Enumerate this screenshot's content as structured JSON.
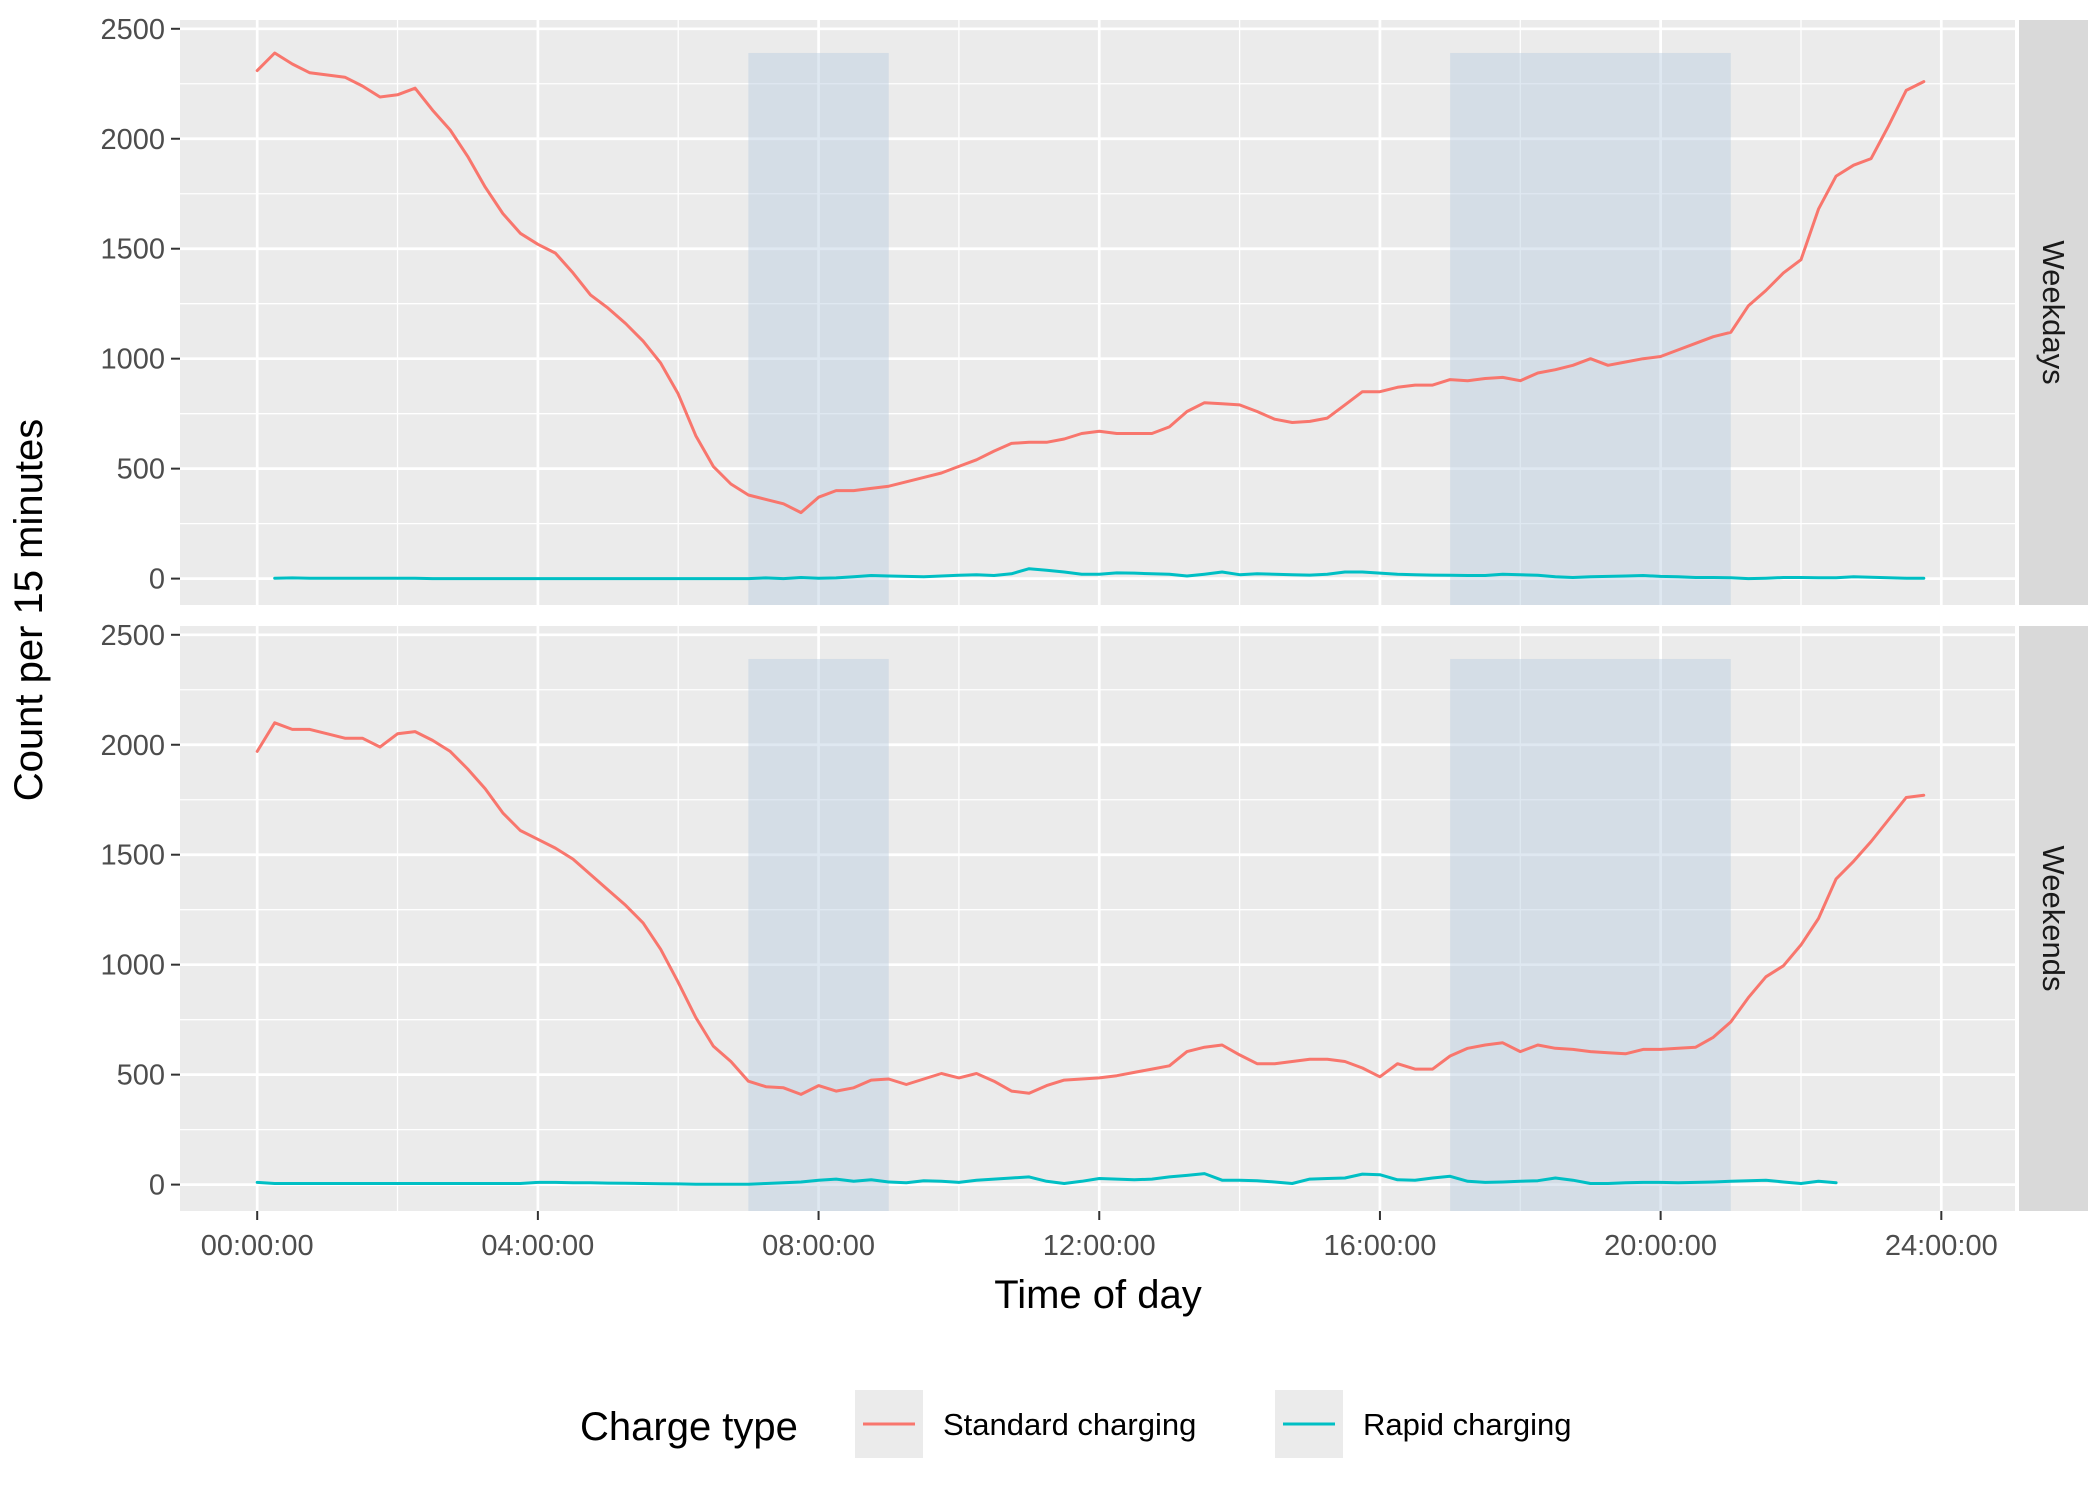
{
  "chart_data": {
    "type": "line",
    "xlabel": "Time of day",
    "ylabel": "Count per 15 minutes",
    "x_unit": "hours",
    "xlim": [
      -1.1,
      25.05
    ],
    "ylim": [
      -120,
      2540
    ],
    "x_ticks": [
      0,
      4,
      8,
      12,
      16,
      20,
      24
    ],
    "x_tick_labels": [
      "00:00:00",
      "04:00:00",
      "08:00:00",
      "12:00:00",
      "16:00:00",
      "20:00:00",
      "24:00:00"
    ],
    "y_ticks": [
      0,
      500,
      1000,
      1500,
      2000,
      2500
    ],
    "y_tick_labels": [
      "0",
      "500",
      "1000",
      "1500",
      "2000",
      "2500"
    ],
    "grid": true,
    "shaded_periods": [
      {
        "from": 7,
        "to": 9,
        "y_to": 2390
      },
      {
        "from": 17,
        "to": 21,
        "y_to": 2390
      }
    ],
    "legend": {
      "title": "Charge type",
      "position": "bottom",
      "entries": [
        {
          "name": "Standard charging",
          "color": "#F8766D"
        },
        {
          "name": "Rapid charging",
          "color": "#00BFC4"
        }
      ]
    },
    "panels": [
      {
        "name": "Weekdays",
        "series": [
          {
            "name": "Standard charging",
            "color": "#F8766D",
            "x": [
              0,
              0.25,
              0.5,
              0.75,
              1,
              1.25,
              1.5,
              1.75,
              2,
              2.25,
              2.5,
              2.75,
              3,
              3.25,
              3.5,
              3.75,
              4,
              4.25,
              4.5,
              4.75,
              5,
              5.25,
              5.5,
              5.75,
              6,
              6.25,
              6.5,
              6.75,
              7,
              7.25,
              7.5,
              7.75,
              8,
              8.25,
              8.5,
              8.75,
              9,
              9.25,
              9.5,
              9.75,
              10,
              10.25,
              10.5,
              10.75,
              11,
              11.25,
              11.5,
              11.75,
              12,
              12.25,
              12.5,
              12.75,
              13,
              13.25,
              13.5,
              13.75,
              14,
              14.25,
              14.5,
              14.75,
              15,
              15.25,
              15.5,
              15.75,
              16,
              16.25,
              16.5,
              16.75,
              17,
              17.25,
              17.5,
              17.75,
              18,
              18.25,
              18.5,
              18.75,
              19,
              19.25,
              19.5,
              19.75,
              20,
              20.25,
              20.5,
              20.75,
              21,
              21.25,
              21.5,
              21.75,
              22,
              22.25,
              22.5,
              22.75,
              23,
              23.25,
              23.5,
              23.75
            ],
            "y": [
              2310,
              2390,
              2340,
              2300,
              2290,
              2280,
              2240,
              2190,
              2200,
              2230,
              2130,
              2040,
              1920,
              1780,
              1660,
              1570,
              1520,
              1480,
              1390,
              1290,
              1230,
              1160,
              1080,
              980,
              840,
              650,
              510,
              430,
              380,
              360,
              340,
              300,
              370,
              400,
              400,
              410,
              420,
              440,
              460,
              480,
              510,
              540,
              580,
              615,
              620,
              620,
              635,
              660,
              670,
              660,
              660,
              660,
              690,
              760,
              800,
              795,
              790,
              760,
              725,
              710,
              715,
              730,
              790,
              850,
              850,
              870,
              880,
              880,
              905,
              900,
              910,
              915,
              900,
              935,
              950,
              970,
              1000,
              970,
              985,
              1000,
              1010,
              1040,
              1070,
              1100,
              1120,
              1240,
              1310,
              1390,
              1450,
              1680,
              1830,
              1880,
              1910,
              2060,
              2220,
              2260
            ]
          },
          {
            "name": "Rapid charging",
            "color": "#00BFC4",
            "x": [
              0.25,
              0.5,
              0.75,
              1,
              1.25,
              1.5,
              1.75,
              2,
              2.25,
              2.5,
              2.75,
              3,
              3.25,
              3.5,
              3.75,
              4,
              4.25,
              4.5,
              4.75,
              5,
              5.25,
              5.5,
              5.75,
              6,
              6.25,
              6.5,
              6.75,
              7,
              7.25,
              7.5,
              7.75,
              8,
              8.25,
              8.5,
              8.75,
              9,
              9.25,
              9.5,
              9.75,
              10,
              10.25,
              10.5,
              10.75,
              11,
              11.25,
              11.5,
              11.75,
              12,
              12.25,
              12.5,
              12.75,
              13,
              13.25,
              13.5,
              13.75,
              14,
              14.25,
              14.5,
              14.75,
              15,
              15.25,
              15.5,
              15.75,
              16,
              16.25,
              16.5,
              16.75,
              17,
              17.25,
              17.5,
              17.75,
              18,
              18.25,
              18.5,
              18.75,
              19,
              19.25,
              19.5,
              19.75,
              20,
              20.25,
              20.5,
              20.75,
              21,
              21.25,
              21.5,
              21.75,
              22,
              22.25,
              22.5,
              22.75,
              23,
              23.25,
              23.5,
              23.75
            ],
            "y": [
              2,
              3,
              2,
              2,
              2,
              2,
              2,
              2,
              2,
              0,
              0,
              0,
              0,
              0,
              0,
              0,
              0,
              0,
              0,
              0,
              0,
              0,
              0,
              0,
              0,
              0,
              0,
              0,
              3,
              0,
              5,
              2,
              3,
              8,
              14,
              12,
              10,
              8,
              12,
              15,
              18,
              14,
              22,
              45,
              38,
              30,
              20,
              20,
              26,
              25,
              22,
              20,
              12,
              20,
              30,
              18,
              22,
              20,
              18,
              16,
              20,
              30,
              30,
              25,
              20,
              18,
              16,
              15,
              14,
              14,
              20,
              18,
              15,
              8,
              5,
              8,
              10,
              12,
              14,
              10,
              8,
              5,
              5,
              4,
              0,
              2,
              5,
              5,
              4,
              4,
              8,
              6,
              4,
              2,
              2
            ]
          }
        ]
      },
      {
        "name": "Weekends",
        "series": [
          {
            "name": "Standard charging",
            "color": "#F8766D",
            "x": [
              0,
              0.25,
              0.5,
              0.75,
              1,
              1.25,
              1.5,
              1.75,
              2,
              2.25,
              2.5,
              2.75,
              3,
              3.25,
              3.5,
              3.75,
              4,
              4.25,
              4.5,
              4.75,
              5,
              5.25,
              5.5,
              5.75,
              6,
              6.25,
              6.5,
              6.75,
              7,
              7.25,
              7.5,
              7.75,
              8,
              8.25,
              8.5,
              8.75,
              9,
              9.25,
              9.5,
              9.75,
              10,
              10.25,
              10.5,
              10.75,
              11,
              11.25,
              11.5,
              11.75,
              12,
              12.25,
              12.5,
              12.75,
              13,
              13.25,
              13.5,
              13.75,
              14,
              14.25,
              14.5,
              14.75,
              15,
              15.25,
              15.5,
              15.75,
              16,
              16.25,
              16.5,
              16.75,
              17,
              17.25,
              17.5,
              17.75,
              18,
              18.25,
              18.5,
              18.75,
              19,
              19.25,
              19.5,
              19.75,
              20,
              20.25,
              20.5,
              20.75,
              21,
              21.25,
              21.5,
              21.75,
              22,
              22.25,
              22.5,
              22.75,
              23,
              23.25,
              23.5,
              23.75
            ],
            "y": [
              1970,
              2100,
              2070,
              2070,
              2050,
              2030,
              2030,
              1990,
              2050,
              2060,
              2020,
              1970,
              1890,
              1800,
              1690,
              1610,
              1570,
              1530,
              1480,
              1410,
              1340,
              1270,
              1190,
              1070,
              920,
              760,
              630,
              560,
              470,
              445,
              440,
              410,
              450,
              425,
              440,
              475,
              480,
              455,
              480,
              505,
              485,
              505,
              470,
              425,
              415,
              450,
              475,
              480,
              485,
              495,
              510,
              525,
              540,
              605,
              625,
              635,
              590,
              550,
              550,
              560,
              570,
              570,
              560,
              530,
              490,
              550,
              525,
              525,
              585,
              620,
              635,
              645,
              605,
              635,
              620,
              615,
              605,
              600,
              595,
              615,
              615,
              620,
              625,
              670,
              740,
              850,
              945,
              995,
              1090,
              1210,
              1390,
              1470,
              1560,
              1660,
              1760,
              1770
            ]
          },
          {
            "name": "Rapid charging",
            "color": "#00BFC4",
            "x": [
              0,
              0.25,
              0.5,
              0.75,
              1,
              1.25,
              1.5,
              1.75,
              2,
              2.25,
              2.5,
              2.75,
              3,
              3.25,
              3.5,
              3.75,
              4,
              4.25,
              4.5,
              4.75,
              5,
              5.25,
              5.5,
              5.75,
              6,
              6.25,
              6.5,
              6.75,
              7,
              7.25,
              7.5,
              7.75,
              8,
              8.25,
              8.5,
              8.75,
              9,
              9.25,
              9.5,
              9.75,
              10,
              10.25,
              10.5,
              10.75,
              11,
              11.25,
              11.5,
              11.75,
              12,
              12.25,
              12.5,
              12.75,
              13,
              13.25,
              13.5,
              13.75,
              14,
              14.25,
              14.5,
              14.75,
              15,
              15.25,
              15.5,
              15.75,
              16,
              16.25,
              16.5,
              16.75,
              17,
              17.25,
              17.5,
              17.75,
              18,
              18.25,
              18.5,
              18.75,
              19,
              19.25,
              19.5,
              19.75,
              20,
              20.25,
              20.5,
              20.75,
              21,
              21.25,
              21.5,
              21.75,
              22,
              22.25,
              22.5
            ],
            "y": [
              10,
              5,
              5,
              5,
              5,
              5,
              5,
              5,
              5,
              5,
              5,
              5,
              5,
              5,
              5,
              5,
              10,
              10,
              8,
              8,
              7,
              6,
              5,
              4,
              3,
              2,
              2,
              2,
              2,
              5,
              8,
              12,
              20,
              25,
              15,
              22,
              12,
              8,
              18,
              15,
              10,
              20,
              25,
              30,
              35,
              15,
              5,
              15,
              28,
              25,
              22,
              25,
              35,
              42,
              50,
              20,
              20,
              18,
              12,
              5,
              25,
              28,
              30,
              48,
              45,
              22,
              20,
              30,
              38,
              15,
              10,
              12,
              15,
              18,
              30,
              20,
              5,
              5,
              8,
              10,
              10,
              8,
              10,
              12,
              15,
              18,
              20,
              12,
              5,
              15,
              8
            ]
          }
        ]
      }
    ]
  }
}
